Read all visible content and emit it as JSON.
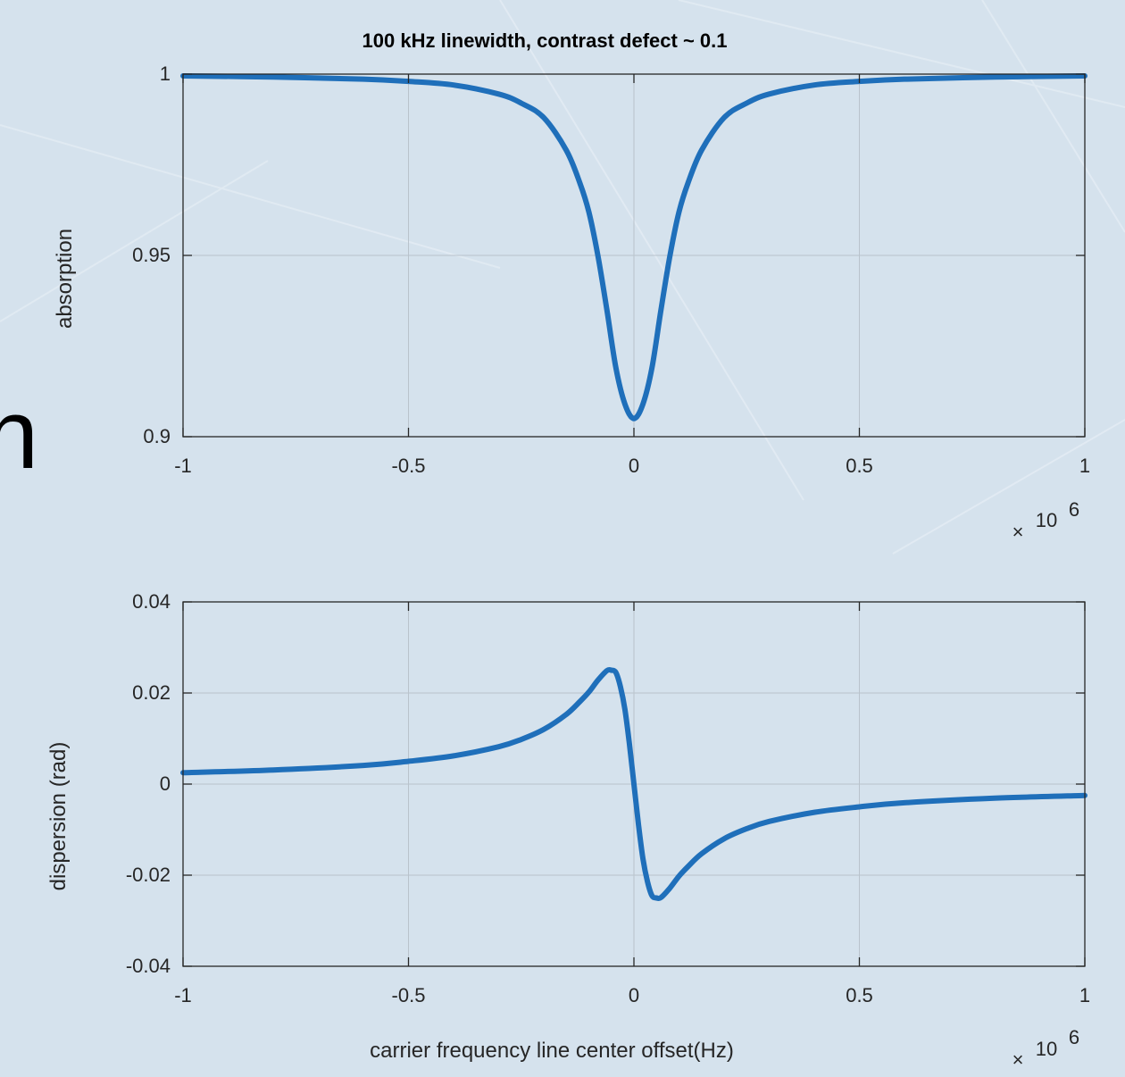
{
  "background_glyph": "n",
  "colors": {
    "line": "#1f6fba",
    "axes": "#262626",
    "grid": "#b9c3cc",
    "background": "#d5e2ed"
  },
  "chart_data": [
    {
      "type": "line",
      "title": "100 kHz linewidth, contrast defect ~ 0.1",
      "xlabel": "",
      "ylabel": "absorption",
      "xlim": [
        -1000000,
        1000000
      ],
      "ylim": [
        0.9,
        1
      ],
      "xticks": [
        -1,
        -0.5,
        0,
        0.5,
        1
      ],
      "xtick_labels": [
        "-1",
        "-0.5",
        "0",
        "0.5",
        "1"
      ],
      "yticks": [
        0.9,
        0.95,
        1
      ],
      "ytick_labels": [
        "0.9",
        "0.95",
        "1"
      ],
      "x_exponent_base": "10",
      "x_exponent_power": "6",
      "grid": true,
      "series": [
        {
          "x": [
            -1000000,
            -800000,
            -600000,
            -500000,
            -400000,
            -300000,
            -250000,
            -200000,
            -150000,
            -120000,
            -100000,
            -80000,
            -60000,
            -40000,
            -20000,
            0,
            20000,
            40000,
            60000,
            80000,
            100000,
            120000,
            150000,
            200000,
            250000,
            300000,
            400000,
            500000,
            600000,
            800000,
            1000000
          ],
          "y": [
            0.9995,
            0.9992,
            0.9986,
            0.998,
            0.997,
            0.9945,
            0.992,
            0.988,
            0.979,
            0.97,
            0.962,
            0.95,
            0.935,
            0.919,
            0.909,
            0.905,
            0.909,
            0.919,
            0.935,
            0.95,
            0.962,
            0.97,
            0.979,
            0.988,
            0.992,
            0.9945,
            0.997,
            0.998,
            0.9986,
            0.9992,
            0.9995
          ]
        }
      ]
    },
    {
      "type": "line",
      "title": "",
      "xlabel": "carrier frequency line center offset(Hz)",
      "ylabel": "dispersion (rad)",
      "xlim": [
        -1000000,
        1000000
      ],
      "ylim": [
        -0.04,
        0.04
      ],
      "xticks": [
        -1,
        -0.5,
        0,
        0.5,
        1
      ],
      "xtick_labels": [
        "-1",
        "-0.5",
        "0",
        "0.5",
        "1"
      ],
      "yticks": [
        -0.04,
        -0.02,
        0,
        0.02,
        0.04
      ],
      "ytick_labels": [
        "-0.04",
        "-0.02",
        "0",
        "0.02",
        "0.04"
      ],
      "x_exponent_base": "10",
      "x_exponent_power": "6",
      "grid": true,
      "series": [
        {
          "x": [
            -1000000,
            -800000,
            -600000,
            -500000,
            -400000,
            -300000,
            -250000,
            -200000,
            -150000,
            -120000,
            -100000,
            -80000,
            -60000,
            -50000,
            -40000,
            -30000,
            -20000,
            -10000,
            0,
            10000,
            20000,
            30000,
            40000,
            50000,
            60000,
            80000,
            100000,
            120000,
            150000,
            200000,
            250000,
            300000,
            400000,
            500000,
            600000,
            800000,
            1000000
          ],
          "y": [
            0.0025,
            0.0031,
            0.0041,
            0.005,
            0.0062,
            0.0082,
            0.0098,
            0.012,
            0.0153,
            0.0181,
            0.0202,
            0.0228,
            0.0249,
            0.025,
            0.0245,
            0.0214,
            0.0164,
            0.0088,
            0.0,
            -0.0088,
            -0.0164,
            -0.0214,
            -0.0245,
            -0.025,
            -0.0249,
            -0.0228,
            -0.0202,
            -0.0181,
            -0.0153,
            -0.012,
            -0.0098,
            -0.0082,
            -0.0062,
            -0.005,
            -0.0041,
            -0.0031,
            -0.0025
          ]
        }
      ]
    }
  ]
}
